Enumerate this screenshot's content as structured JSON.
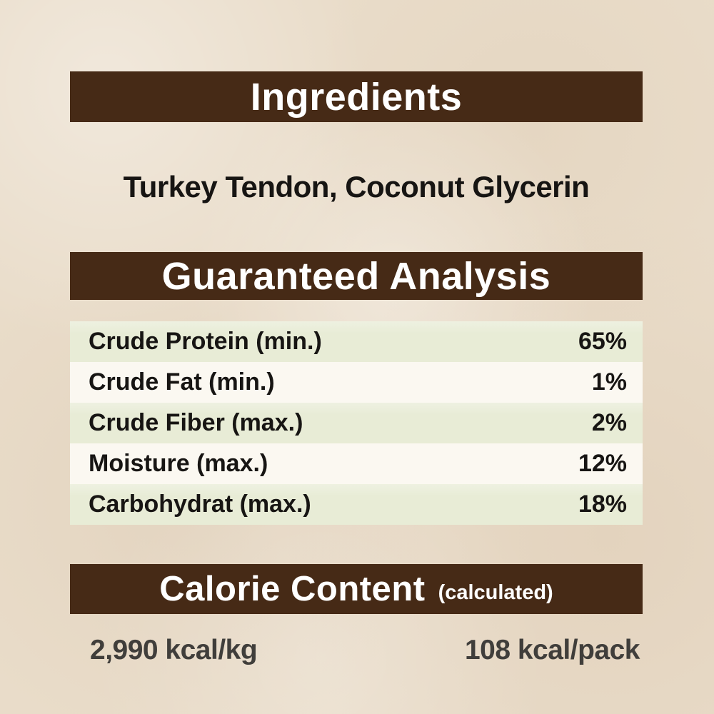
{
  "colors": {
    "background": "#e9dcc9",
    "bar_brown": "#462a16",
    "row_green": "#e8ecd6",
    "row_cream": "#fbf8f1",
    "text_dark": "#171513",
    "kcal_text": "#403e3b"
  },
  "ingredients": {
    "header": "Ingredients",
    "list": "Turkey Tendon, Coconut Glycerin"
  },
  "guaranteed_analysis": {
    "header": "Guaranteed Analysis",
    "rows": [
      {
        "label": "Crude Protein (min.)",
        "value": "65%"
      },
      {
        "label": "Crude Fat (min.)",
        "value": "1%"
      },
      {
        "label": "Crude Fiber (max.)",
        "value": "2%"
      },
      {
        "label": "Moisture (max.)",
        "value": "12%"
      },
      {
        "label": "Carbohydrat (max.)",
        "value": "18%"
      }
    ]
  },
  "calorie_content": {
    "header": "Calorie Content",
    "note": "(calculated)",
    "per_kg": "2,990 kcal/kg",
    "per_pack": "108 kcal/pack"
  }
}
